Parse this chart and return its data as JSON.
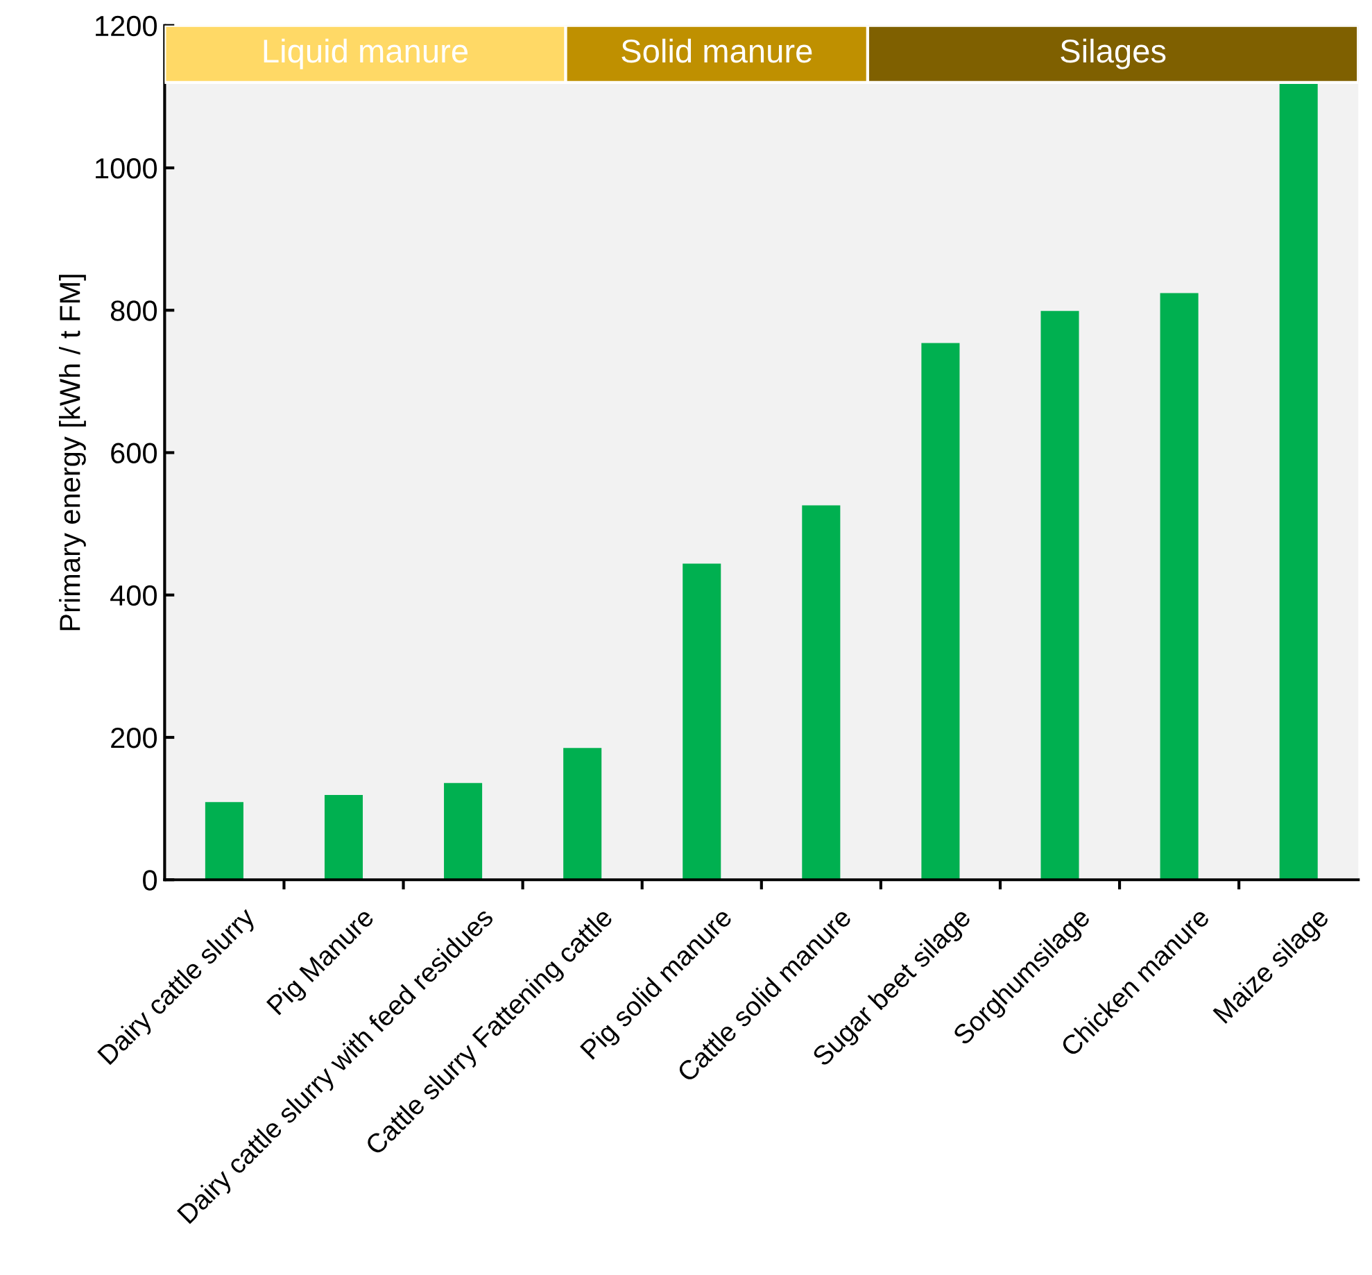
{
  "chart_data": {
    "type": "bar",
    "ylabel": "Primary energy [kWh / t FM]",
    "categories": [
      "Dairy cattle slurry",
      "Pig Manure",
      "Dairy cattle slurry with feed residues",
      "Cattle slurry Fattening cattle",
      "Pig solid manure",
      "Cattle solid manure",
      "Sugar beet silage",
      "Sorghumsilage",
      "Chicken manure",
      "Maize silage"
    ],
    "values": [
      109,
      119,
      136,
      185,
      444,
      526,
      754,
      799,
      824,
      1120
    ],
    "color": "#00b050",
    "ylim": [
      0,
      1200
    ],
    "yticks": [
      0,
      200,
      400,
      600,
      800,
      1000,
      1200
    ],
    "annotations": [
      "Liquid manure",
      "Solid manure",
      "Silages"
    ],
    "grid": false,
    "legend": false
  }
}
